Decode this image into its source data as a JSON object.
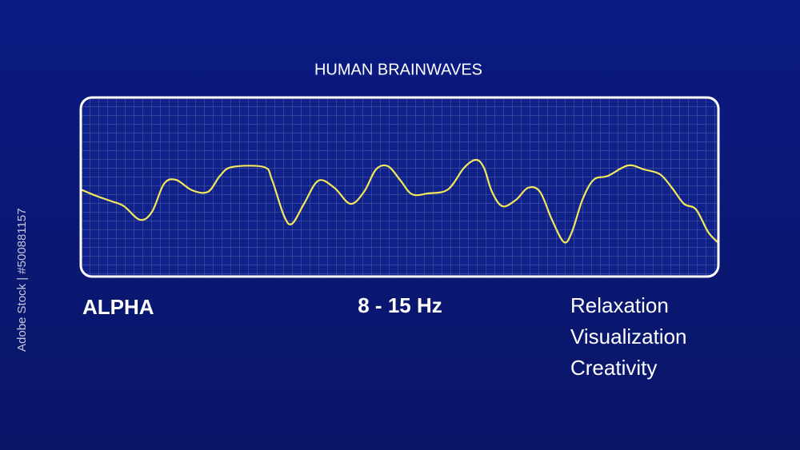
{
  "title": "HUMAN BRAINWAVES",
  "wave": {
    "name": "ALPHA",
    "frequency": "8 - 15 Hz",
    "states": [
      "Relaxation",
      "Visualization",
      "Creativity"
    ]
  },
  "side_label": "Adobe Stock | #500881157"
}
